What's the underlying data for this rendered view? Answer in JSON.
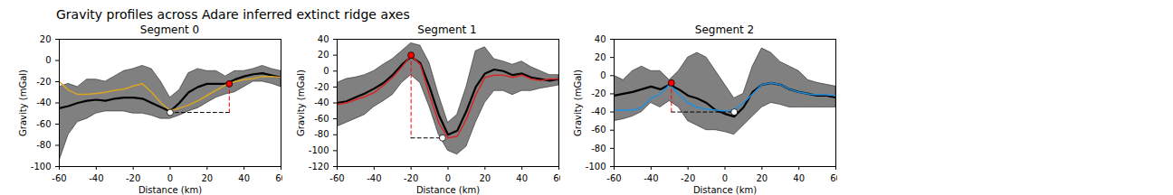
{
  "title": "Gravity profiles across Adare inferred extinct ridge axes",
  "chart_data": [
    {
      "type": "line",
      "title": "Segment 0",
      "x_label": "Distance (km)",
      "y_label": "Gravity (mGal)",
      "xlim": [
        -60,
        60
      ],
      "xticks": [
        -60,
        -40,
        -20,
        0,
        20,
        40,
        60
      ],
      "ylim": [
        -100,
        20
      ],
      "yticks": [
        -100,
        -80,
        -60,
        -40,
        -20,
        0,
        20
      ],
      "x": [
        -60,
        -55,
        -50,
        -45,
        -40,
        -35,
        -30,
        -25,
        -20,
        -15,
        -10,
        -5,
        0,
        5,
        10,
        15,
        20,
        25,
        30,
        35,
        40,
        45,
        50,
        55,
        60
      ],
      "band": {
        "color": "#808080",
        "lower": [
          -95,
          -70,
          -58,
          -55,
          -50,
          -48,
          -48,
          -48,
          -50,
          -50,
          -52,
          -55,
          -55,
          -52,
          -48,
          -45,
          -40,
          -35,
          -32,
          -30,
          -25,
          -20,
          -20,
          -22,
          -25
        ],
        "upper": [
          -25,
          -22,
          -25,
          -18,
          -18,
          -20,
          -15,
          -10,
          -8,
          -5,
          -8,
          -20,
          -35,
          -28,
          -12,
          -8,
          -10,
          -10,
          -15,
          -10,
          -10,
          -8,
          -5,
          -8,
          -10
        ]
      },
      "series": [
        {
          "color": "#000000",
          "values": [
            -45,
            -43,
            -40,
            -38,
            -37,
            -38,
            -36,
            -35,
            -35,
            -36,
            -40,
            -44,
            -48,
            -40,
            -30,
            -25,
            -22,
            -22,
            -22,
            -18,
            -15,
            -13,
            -12,
            -14,
            -16
          ]
        },
        {
          "color": "#daa520",
          "values": [
            -20,
            -28,
            -32,
            -32,
            -31,
            -30,
            -28,
            -27,
            -24,
            -22,
            -30,
            -40,
            -47,
            -45,
            -42,
            -38,
            -33,
            -28,
            -23,
            -20,
            -18,
            -17,
            -15,
            -15,
            -16
          ]
        }
      ],
      "points": {
        "x": [
          32,
          0
        ],
        "y": [
          -22,
          -49
        ],
        "colors": [
          "#ff0000",
          "#ffffff"
        ],
        "line_style": "dashed"
      }
    },
    {
      "type": "line",
      "title": "Segment 1",
      "x_label": "Distance (km)",
      "y_label": "Gravity (mGal)",
      "xlim": [
        -60,
        60
      ],
      "xticks": [
        -60,
        -40,
        -20,
        0,
        20,
        40,
        60
      ],
      "ylim": [
        -120,
        40
      ],
      "yticks": [
        -120,
        -100,
        -80,
        -60,
        -40,
        -20,
        0,
        20,
        40
      ],
      "x": [
        -60,
        -55,
        -50,
        -45,
        -40,
        -35,
        -30,
        -25,
        -20,
        -15,
        -10,
        -5,
        0,
        5,
        10,
        15,
        20,
        25,
        30,
        35,
        40,
        45,
        50,
        55,
        60
      ],
      "band": {
        "color": "#808080",
        "lower": [
          -70,
          -65,
          -60,
          -55,
          -45,
          -38,
          -30,
          -15,
          -5,
          -15,
          -45,
          -80,
          -100,
          -105,
          -95,
          -65,
          -40,
          -25,
          -25,
          -30,
          -25,
          -25,
          -22,
          -20,
          -18
        ],
        "upper": [
          -15,
          -10,
          -8,
          -5,
          0,
          8,
          15,
          25,
          35,
          32,
          10,
          -30,
          -65,
          -55,
          -20,
          25,
          30,
          15,
          12,
          8,
          12,
          5,
          0,
          -5,
          -5
        ]
      },
      "series": [
        {
          "color": "#000000",
          "values": [
            -40,
            -38,
            -33,
            -28,
            -22,
            -15,
            -5,
            8,
            18,
            10,
            -20,
            -55,
            -80,
            -75,
            -50,
            -20,
            -3,
            2,
            0,
            -5,
            -3,
            -8,
            -10,
            -12,
            -10
          ]
        },
        {
          "color": "#d62728",
          "values": [
            -42,
            -40,
            -36,
            -32,
            -27,
            -18,
            -8,
            5,
            20,
            8,
            -30,
            -65,
            -84,
            -82,
            -60,
            -30,
            -8,
            -5,
            -5,
            -8,
            -5,
            -10,
            -12,
            -10,
            -10
          ]
        }
      ],
      "points": {
        "x": [
          -20,
          -3
        ],
        "y": [
          20,
          -84
        ],
        "colors": [
          "#ff0000",
          "#ffffff"
        ],
        "line_style": "dashed"
      }
    },
    {
      "type": "line",
      "title": "Segment 2",
      "x_label": "Distance (km)",
      "y_label": "Gravity (mGal)",
      "xlim": [
        -60,
        60
      ],
      "xticks": [
        -60,
        -40,
        -20,
        0,
        20,
        40,
        60
      ],
      "ylim": [
        -100,
        40
      ],
      "yticks": [
        -100,
        -80,
        -60,
        -40,
        -20,
        0,
        20,
        40
      ],
      "x": [
        -60,
        -55,
        -50,
        -45,
        -40,
        -35,
        -30,
        -25,
        -20,
        -15,
        -10,
        -5,
        0,
        5,
        10,
        15,
        20,
        25,
        30,
        35,
        40,
        45,
        50,
        55,
        60
      ],
      "band": {
        "color": "#808080",
        "lower": [
          -50,
          -48,
          -45,
          -40,
          -30,
          -35,
          -28,
          -35,
          -50,
          -55,
          -60,
          -60,
          -62,
          -65,
          -55,
          -45,
          -35,
          -30,
          -32,
          -35,
          -35,
          -35,
          -35,
          -35,
          -35
        ],
        "upper": [
          0,
          -5,
          5,
          10,
          5,
          5,
          -5,
          5,
          20,
          25,
          20,
          5,
          -10,
          -25,
          -20,
          10,
          30,
          25,
          15,
          10,
          5,
          -5,
          -8,
          -10,
          -12
        ]
      },
      "series": [
        {
          "color": "#000000",
          "values": [
            -22,
            -20,
            -18,
            -15,
            -12,
            -15,
            -10,
            -15,
            -22,
            -25,
            -30,
            -38,
            -42,
            -45,
            -35,
            -18,
            -10,
            -8,
            -10,
            -15,
            -18,
            -20,
            -22,
            -22,
            -24
          ]
        },
        {
          "color": "#1f8fe0",
          "values": [
            -38,
            -38,
            -38,
            -35,
            -25,
            -20,
            -10,
            -20,
            -30,
            -35,
            -37,
            -38,
            -39,
            -38,
            -30,
            -20,
            -10,
            -8,
            -10,
            -15,
            -18,
            -20,
            -21,
            -21,
            -22
          ]
        }
      ],
      "points": {
        "x": [
          -29,
          5
        ],
        "y": [
          -8,
          -40
        ],
        "colors": [
          "#ff0000",
          "#ffffff"
        ],
        "line_style": "dashed"
      }
    }
  ]
}
